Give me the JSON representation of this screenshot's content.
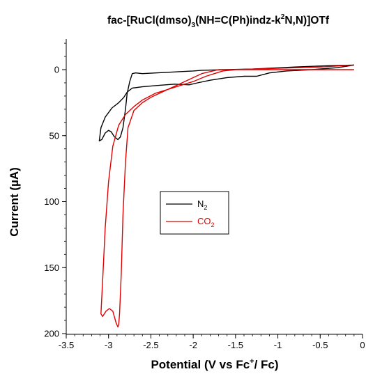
{
  "chart_data": {
    "type": "line",
    "title": {
      "prefix": "fac-[RuCl(dmso)",
      "sub1": "3",
      "mid": "(NH=C(Ph)indz-k",
      "sup": "2",
      "suffix": "N,N)]OTf"
    },
    "xlabel": {
      "prefix": "Potential (V vs Fc",
      "sup": "+",
      "suffix": "/ Fc)"
    },
    "ylabel": "Current (µA)",
    "xlim": [
      -3.5,
      0
    ],
    "ylim": [
      200,
      -25
    ],
    "x_ticks": [
      "-3.5",
      "-3",
      "-2.5",
      "-2",
      "-1.5",
      "-1",
      "-0.5",
      "0"
    ],
    "y_ticks": [
      "0",
      "50",
      "100",
      "150",
      "200"
    ],
    "x_tick_values": [
      -3.5,
      -3,
      -2.5,
      -2,
      -1.5,
      -1,
      -0.5,
      0
    ],
    "y_tick_values": [
      0,
      50,
      100,
      150,
      200
    ],
    "legend": {
      "placement": "center",
      "items": [
        {
          "base": "N",
          "sub": "2",
          "color": "#000000"
        },
        {
          "base": "CO",
          "sub": "2",
          "color": "#e00000"
        }
      ]
    },
    "series": [
      {
        "name": "N2",
        "color": "#000000",
        "points": [
          [
            -0.1,
            -3.5
          ],
          [
            -0.4,
            -3
          ],
          [
            -0.8,
            -2
          ],
          [
            -1.3,
            -0.5
          ],
          [
            -1.6,
            0
          ],
          [
            -1.9,
            0.5
          ],
          [
            -2.0,
            1
          ],
          [
            -2.3,
            2
          ],
          [
            -2.6,
            3
          ],
          [
            -2.68,
            2.5
          ],
          [
            -2.72,
            3
          ],
          [
            -2.75,
            9
          ],
          [
            -2.78,
            18
          ],
          [
            -2.8,
            30
          ],
          [
            -2.83,
            44
          ],
          [
            -2.86,
            51
          ],
          [
            -2.89,
            53
          ],
          [
            -2.93,
            51
          ],
          [
            -2.97,
            47
          ],
          [
            -3.0,
            46
          ],
          [
            -3.04,
            48
          ],
          [
            -3.08,
            53
          ],
          [
            -3.11,
            54
          ],
          [
            -3.09,
            44
          ],
          [
            -3.04,
            36
          ],
          [
            -2.96,
            29
          ],
          [
            -2.88,
            25
          ],
          [
            -2.82,
            21
          ],
          [
            -2.78,
            17
          ],
          [
            -2.72,
            14
          ],
          [
            -2.6,
            13
          ],
          [
            -2.42,
            12
          ],
          [
            -2.22,
            11
          ],
          [
            -2.05,
            11.5
          ],
          [
            -1.95,
            10
          ],
          [
            -1.8,
            8
          ],
          [
            -1.6,
            6
          ],
          [
            -1.4,
            5
          ],
          [
            -1.25,
            5
          ],
          [
            -1.1,
            2.5
          ],
          [
            -0.9,
            1
          ],
          [
            -0.6,
            0
          ],
          [
            -0.3,
            -1.5
          ],
          [
            -0.1,
            -3.5
          ]
        ]
      },
      {
        "name": "CO2",
        "color": "#e00000",
        "points": [
          [
            -0.1,
            0
          ],
          [
            -0.5,
            0
          ],
          [
            -1.0,
            0
          ],
          [
            -1.4,
            0
          ],
          [
            -1.7,
            0
          ],
          [
            -1.9,
            3
          ],
          [
            -2.1,
            9
          ],
          [
            -2.3,
            15
          ],
          [
            -2.5,
            21
          ],
          [
            -2.6,
            25
          ],
          [
            -2.7,
            31
          ],
          [
            -2.77,
            44
          ],
          [
            -2.8,
            70
          ],
          [
            -2.83,
            110
          ],
          [
            -2.85,
            155
          ],
          [
            -2.87,
            185
          ],
          [
            -2.88,
            193
          ],
          [
            -2.89,
            195
          ],
          [
            -2.91,
            192
          ],
          [
            -2.95,
            183
          ],
          [
            -2.99,
            181
          ],
          [
            -3.03,
            183
          ],
          [
            -3.07,
            187
          ],
          [
            -3.09,
            185
          ],
          [
            -3.07,
            160
          ],
          [
            -3.04,
            120
          ],
          [
            -3.0,
            85
          ],
          [
            -2.95,
            58
          ],
          [
            -2.88,
            42
          ],
          [
            -2.8,
            34
          ],
          [
            -2.7,
            28
          ],
          [
            -2.6,
            23
          ],
          [
            -2.45,
            18
          ],
          [
            -2.3,
            15
          ],
          [
            -2.15,
            12
          ],
          [
            -2.0,
            9
          ],
          [
            -1.85,
            5
          ],
          [
            -1.75,
            3
          ],
          [
            -1.65,
            1
          ],
          [
            -1.5,
            0
          ],
          [
            -1.0,
            -1
          ],
          [
            -0.5,
            -2
          ],
          [
            -0.1,
            -3.5
          ]
        ]
      }
    ]
  }
}
